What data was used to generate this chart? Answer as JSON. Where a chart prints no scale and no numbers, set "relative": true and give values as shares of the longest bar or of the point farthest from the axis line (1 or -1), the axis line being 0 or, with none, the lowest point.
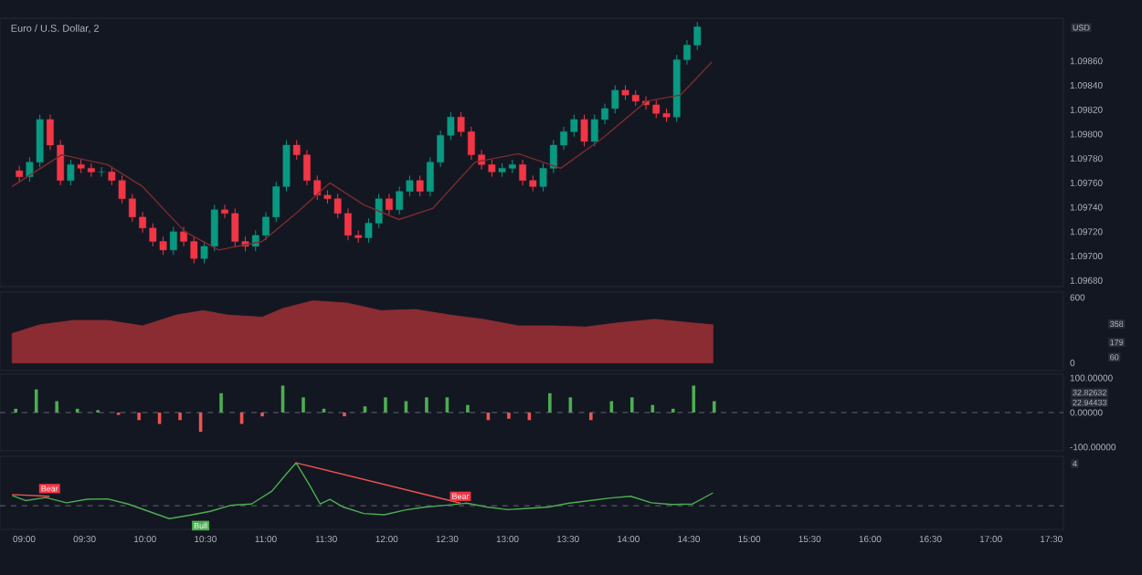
{
  "chart_data": [
    {
      "type": "candlestick",
      "title": "Euro / U.S. Dollar, 2",
      "x": [
        8.96,
        9.045,
        9.13,
        9.215,
        9.3,
        9.385,
        9.47,
        9.555,
        9.64,
        9.725,
        9.81,
        9.895,
        9.98,
        10.065,
        10.15,
        10.235,
        10.32,
        10.405,
        10.49,
        10.575,
        10.66,
        10.745,
        10.83,
        10.915,
        11.0,
        11.085,
        11.17,
        11.255,
        11.34,
        11.425,
        11.51,
        11.595,
        11.68,
        11.765,
        11.85,
        11.935,
        12.02,
        12.105,
        12.19,
        12.275,
        12.36,
        12.445,
        12.53,
        12.615,
        12.7,
        12.785,
        12.87,
        12.955,
        13.04,
        13.125,
        13.21,
        13.295,
        13.38,
        13.465,
        13.55,
        13.635,
        13.72,
        13.805,
        13.89,
        13.975,
        14.06,
        14.145,
        14.23,
        14.315,
        14.4,
        14.485,
        14.57
      ],
      "ohlc": [
        [
          1.0977,
          1.09774,
          1.09761,
          1.09765
        ],
        [
          1.09765,
          1.09781,
          1.09761,
          1.09777
        ],
        [
          1.09777,
          1.09816,
          1.09773,
          1.09812
        ],
        [
          1.09812,
          1.09816,
          1.09787,
          1.09791
        ],
        [
          1.09791,
          1.09795,
          1.09758,
          1.09762
        ],
        [
          1.09762,
          1.09779,
          1.09758,
          1.09775
        ],
        [
          1.09775,
          1.09779,
          1.09768,
          1.09772
        ],
        [
          1.09772,
          1.09776,
          1.09765,
          1.09769
        ],
        [
          1.09769,
          1.09773,
          1.09765,
          1.09769
        ],
        [
          1.09769,
          1.09773,
          1.09758,
          1.09762
        ],
        [
          1.09762,
          1.09766,
          1.09743,
          1.09747
        ],
        [
          1.09747,
          1.09751,
          1.09728,
          1.09732
        ],
        [
          1.09732,
          1.09736,
          1.09719,
          1.09723
        ],
        [
          1.09723,
          1.09727,
          1.09708,
          1.09712
        ],
        [
          1.09712,
          1.09716,
          1.09701,
          1.09705
        ],
        [
          1.09705,
          1.09724,
          1.09701,
          1.0972
        ],
        [
          1.0972,
          1.09724,
          1.09708,
          1.09712
        ],
        [
          1.09712,
          1.09716,
          1.09694,
          1.09698
        ],
        [
          1.09698,
          1.09712,
          1.09694,
          1.09708
        ],
        [
          1.09708,
          1.09742,
          1.09704,
          1.09738
        ],
        [
          1.09738,
          1.09742,
          1.09731,
          1.09735
        ],
        [
          1.09735,
          1.09739,
          1.09708,
          1.09712
        ],
        [
          1.09712,
          1.09716,
          1.09704,
          1.09708
        ],
        [
          1.09708,
          1.09721,
          1.09704,
          1.09717
        ],
        [
          1.09717,
          1.09736,
          1.09713,
          1.09732
        ],
        [
          1.09732,
          1.09761,
          1.09728,
          1.09757
        ],
        [
          1.09757,
          1.09795,
          1.09753,
          1.09791
        ],
        [
          1.09791,
          1.09795,
          1.09779,
          1.09783
        ],
        [
          1.09783,
          1.09787,
          1.09758,
          1.09762
        ],
        [
          1.09762,
          1.09766,
          1.09746,
          1.0975
        ],
        [
          1.0975,
          1.09754,
          1.09743,
          1.09747
        ],
        [
          1.09747,
          1.09751,
          1.09731,
          1.09735
        ],
        [
          1.09735,
          1.09739,
          1.09713,
          1.09717
        ],
        [
          1.09717,
          1.09721,
          1.09711,
          1.09715
        ],
        [
          1.09715,
          1.09731,
          1.09711,
          1.09727
        ],
        [
          1.09727,
          1.09751,
          1.09723,
          1.09747
        ],
        [
          1.09747,
          1.09751,
          1.09734,
          1.09738
        ],
        [
          1.09738,
          1.09757,
          1.09734,
          1.09753
        ],
        [
          1.09753,
          1.09766,
          1.09749,
          1.09762
        ],
        [
          1.09762,
          1.09766,
          1.09749,
          1.09753
        ],
        [
          1.09753,
          1.09781,
          1.09749,
          1.09777
        ],
        [
          1.09777,
          1.09803,
          1.09773,
          1.09799
        ],
        [
          1.09799,
          1.09818,
          1.09795,
          1.09814
        ],
        [
          1.09814,
          1.09818,
          1.09798,
          1.09802
        ],
        [
          1.09802,
          1.09806,
          1.09779,
          1.09783
        ],
        [
          1.09783,
          1.09787,
          1.09771,
          1.09775
        ],
        [
          1.09775,
          1.09779,
          1.09765,
          1.09769
        ],
        [
          1.09769,
          1.09776,
          1.09765,
          1.09772
        ],
        [
          1.09772,
          1.09779,
          1.09768,
          1.09775
        ],
        [
          1.09775,
          1.09779,
          1.09758,
          1.09762
        ],
        [
          1.09762,
          1.09766,
          1.09753,
          1.09757
        ],
        [
          1.09757,
          1.09776,
          1.09753,
          1.09772
        ],
        [
          1.09772,
          1.09795,
          1.09768,
          1.09791
        ],
        [
          1.09791,
          1.09806,
          1.09787,
          1.09802
        ],
        [
          1.09802,
          1.09816,
          1.09798,
          1.09812
        ],
        [
          1.09812,
          1.09816,
          1.0979,
          1.09794
        ],
        [
          1.09794,
          1.09816,
          1.0979,
          1.09812
        ],
        [
          1.09812,
          1.09825,
          1.09808,
          1.09821
        ],
        [
          1.09821,
          1.0984,
          1.09817,
          1.09836
        ],
        [
          1.09836,
          1.0984,
          1.09828,
          1.09832
        ],
        [
          1.09832,
          1.09836,
          1.09823,
          1.09827
        ],
        [
          1.09827,
          1.09831,
          1.0982,
          1.09824
        ],
        [
          1.09824,
          1.09828,
          1.09813,
          1.09817
        ],
        [
          1.09817,
          1.09821,
          1.0981,
          1.09814
        ],
        [
          1.09814,
          1.09865,
          1.0981,
          1.09861
        ],
        [
          1.09861,
          1.09877,
          1.09857,
          1.09873
        ],
        [
          1.09873,
          1.09892,
          1.09869,
          1.09888
        ]
      ],
      "series": [
        {
          "type": "line",
          "color": "#7b2d2d",
          "x": [
            8.9,
            9.31,
            9.69,
            9.98,
            10.33,
            10.61,
            10.97,
            11.25,
            11.53,
            11.81,
            12.1,
            12.38,
            12.73,
            13.09,
            13.44,
            13.79,
            14.15,
            14.43,
            14.69
          ],
          "values": [
            1.09757,
            1.09783,
            1.09775,
            1.09757,
            1.0972,
            1.09705,
            1.09712,
            1.09735,
            1.0976,
            1.09742,
            1.0973,
            1.09739,
            1.09777,
            1.09784,
            1.09772,
            1.09797,
            1.09827,
            1.09832,
            1.09859
          ]
        }
      ],
      "xlim": [
        8.8,
        17.6
      ],
      "ylim": [
        1.09675,
        1.09895
      ],
      "yticks": [
        {
          "value": 1.0968,
          "label": "1.09680"
        },
        {
          "value": 1.097,
          "label": "1.09700"
        },
        {
          "value": 1.0972,
          "label": "1.09720"
        },
        {
          "value": 1.0974,
          "label": "1.09740"
        },
        {
          "value": 1.0976,
          "label": "1.09760"
        },
        {
          "value": 1.0978,
          "label": "1.09780"
        },
        {
          "value": 1.098,
          "label": "1.09800"
        },
        {
          "value": 1.0982,
          "label": "1.09820"
        },
        {
          "value": 1.0984,
          "label": "1.09840"
        },
        {
          "value": 1.0986,
          "label": "1.09860"
        }
      ],
      "tick_labels": "y",
      "annotations": [
        "USD"
      ]
    },
    {
      "type": "area",
      "color": "#8b2c33",
      "x": [
        8.9,
        9.13,
        9.41,
        9.69,
        9.98,
        10.26,
        10.48,
        10.68,
        10.97,
        11.14,
        11.39,
        11.67,
        11.95,
        12.24,
        12.52,
        12.8,
        13.09,
        13.37,
        13.65,
        13.93,
        14.22,
        14.5,
        14.7
      ],
      "values": [
        270,
        350,
        390,
        390,
        340,
        440,
        480,
        440,
        420,
        500,
        570,
        550,
        480,
        490,
        440,
        400,
        340,
        340,
        330,
        370,
        400,
        370,
        350
      ],
      "xlim": [
        8.8,
        17.6
      ],
      "ylim": [
        -70,
        650
      ],
      "yticks": [
        0,
        600
      ],
      "tick_labels": "y",
      "annotations": [
        "358",
        "179",
        "60"
      ]
    },
    {
      "type": "bar",
      "x": [
        8.93,
        9.1,
        9.27,
        9.44,
        9.61,
        9.78,
        9.95,
        10.12,
        10.29,
        10.46,
        10.63,
        10.8,
        10.97,
        11.14,
        11.31,
        11.48,
        11.65,
        11.82,
        11.99,
        12.16,
        12.33,
        12.5,
        12.67,
        12.84,
        13.01,
        13.18,
        13.35,
        13.52,
        13.69,
        13.86,
        14.03,
        14.2,
        14.37,
        14.54,
        14.71
      ],
      "values": [
        11,
        67,
        33,
        11,
        7,
        -7,
        -22,
        -33,
        -22,
        -56,
        56,
        -33,
        -11,
        78,
        44,
        11,
        -11,
        18,
        44,
        33,
        44,
        44,
        22,
        -22,
        -18,
        -22,
        56,
        44,
        -22,
        33,
        44,
        22,
        11,
        78,
        33
      ],
      "colors": [
        "#4caf50",
        "#4caf50",
        "#4caf50",
        "#4caf50",
        "#4caf50",
        "#ef5350",
        "#ef5350",
        "#ef5350",
        "#ef5350",
        "#ef5350",
        "#4caf50",
        "#ef5350",
        "#ef5350",
        "#4caf50",
        "#4caf50",
        "#4caf50",
        "#ef5350",
        "#4caf50",
        "#4caf50",
        "#4caf50",
        "#4caf50",
        "#4caf50",
        "#4caf50",
        "#ef5350",
        "#ef5350",
        "#ef5350",
        "#4caf50",
        "#4caf50",
        "#ef5350",
        "#4caf50",
        "#4caf50",
        "#4caf50",
        "#4caf50",
        "#4caf50",
        "#4caf50"
      ],
      "xlim": [
        8.8,
        17.6
      ],
      "ylim": [
        -111,
        111
      ],
      "yticks": [
        {
          "value": -100,
          "label": "-100.00000"
        },
        {
          "value": 0,
          "label": "0.00000"
        },
        {
          "value": 100,
          "label": "100.00000"
        }
      ],
      "ref_lines": [
        {
          "axis": "y",
          "value": 0,
          "line_style": "dashed",
          "color": "#787b86"
        }
      ],
      "tick_labels": "y",
      "annotations": [
        "32.82632",
        "22.94433"
      ]
    },
    {
      "type": "line",
      "relative": true,
      "series": [
        {
          "color": "#4caf50",
          "x": [
            8.9,
            9.01,
            9.18,
            9.35,
            9.52,
            9.69,
            9.86,
            10.03,
            10.2,
            10.37,
            10.54,
            10.71,
            10.88,
            11.05,
            11.16,
            11.25,
            11.36,
            11.45,
            11.53,
            11.64,
            11.81,
            11.98,
            12.15,
            12.32,
            12.49,
            12.66,
            12.83,
            13.0,
            13.17,
            13.34,
            13.51,
            13.68,
            13.85,
            14.02,
            14.19,
            14.36,
            14.53,
            14.7
          ],
          "values": [
            0.24,
            0.12,
            0.19,
            0.07,
            0.15,
            0.16,
            0.04,
            -0.13,
            -0.3,
            -0.22,
            -0.13,
            0.01,
            0.04,
            0.34,
            0.71,
            1.0,
            0.49,
            0.04,
            0.15,
            -0.03,
            -0.18,
            -0.21,
            -0.1,
            -0.03,
            0.01,
            0.06,
            -0.03,
            -0.09,
            -0.06,
            -0.03,
            0.06,
            0.12,
            0.18,
            0.22,
            0.07,
            0.03,
            0.04,
            0.3
          ]
        },
        {
          "color": "#ef5350",
          "x": [
            8.9,
            9.21,
            10.0,
            11.25,
            12.61
          ],
          "values": [
            0.26,
            0.22,
            null,
            1.0,
            0.06
          ]
        }
      ],
      "xlim": [
        8.8,
        17.6
      ],
      "xticks": [
        {
          "value": 9,
          "label": "09:00"
        },
        {
          "value": 9.5,
          "label": "09:30"
        },
        {
          "value": 10,
          "label": "10:00"
        },
        {
          "value": 10.5,
          "label": "10:30"
        },
        {
          "value": 11,
          "label": "11:00"
        },
        {
          "value": 11.5,
          "label": "11:30"
        },
        {
          "value": 12,
          "label": "12:00"
        },
        {
          "value": 12.5,
          "label": "12:30"
        },
        {
          "value": 13,
          "label": "13:00"
        },
        {
          "value": 13.5,
          "label": "13:30"
        },
        {
          "value": 14,
          "label": "14:00"
        },
        {
          "value": 14.5,
          "label": "14:30"
        },
        {
          "value": 15,
          "label": "15:00"
        },
        {
          "value": 15.5,
          "label": "15:30"
        },
        {
          "value": 16,
          "label": "16:00"
        },
        {
          "value": 16.5,
          "label": "16:30"
        },
        {
          "value": 17,
          "label": "17:00"
        },
        {
          "value": 17.5,
          "label": "17:30"
        }
      ],
      "ref_lines": [
        {
          "axis": "y",
          "value": 0,
          "line_style": "dashed",
          "color": "#787b86"
        }
      ],
      "annotations": [
        {
          "text": "Bear",
          "x": 9.21,
          "y": 0.24
        },
        {
          "text": "Bull",
          "x": 10.46,
          "y": -0.3
        },
        {
          "text": "Bear",
          "x": 12.61,
          "y": 0.06
        },
        "4"
      ]
    }
  ]
}
